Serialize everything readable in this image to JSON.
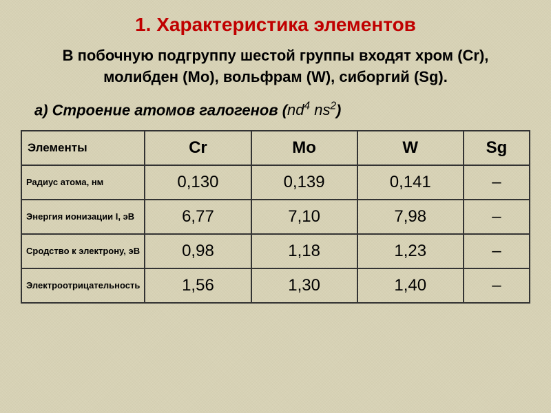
{
  "title": {
    "text": "1. Характеристика элементов",
    "color": "#c00000",
    "fontsize": 28
  },
  "intro": {
    "line1": "В побочную подгруппу шестой группы входят хром (Cr),",
    "line2": "молибден (Mo), вольфрам (W), сиборгий (Sg).",
    "fontsize": 22,
    "color": "#000000"
  },
  "subtitle": {
    "label": "а) Строение атомов галогенов (",
    "formula_html": "nd<sup>4</sup> ns<sup>2</sup>",
    "close": ")",
    "fontsize": 22
  },
  "table": {
    "border_color": "#333333",
    "header_fontsize": 24,
    "cell_fontsize": 24,
    "label_fontsize": 13,
    "columns": [
      "Элементы",
      "Cr",
      "Mo",
      "W",
      "Sg"
    ],
    "rows": [
      {
        "label": "Радиус атома, нм",
        "values": [
          "0,130",
          "0,139",
          "0,141",
          "–"
        ]
      },
      {
        "label": "Энергия ионизации I, эВ",
        "values": [
          "6,77",
          "7,10",
          "7,98",
          "–"
        ]
      },
      {
        "label": "Сродство к электрону, эВ",
        "values": [
          "0,98",
          "1,18",
          "1,23",
          "–"
        ]
      },
      {
        "label": "Электроотрицательность",
        "values": [
          "1,56",
          "1,30",
          "1,40",
          "–"
        ]
      }
    ]
  },
  "colors": {
    "background": "#d9d4b8",
    "title": "#c00000",
    "text": "#000000"
  }
}
